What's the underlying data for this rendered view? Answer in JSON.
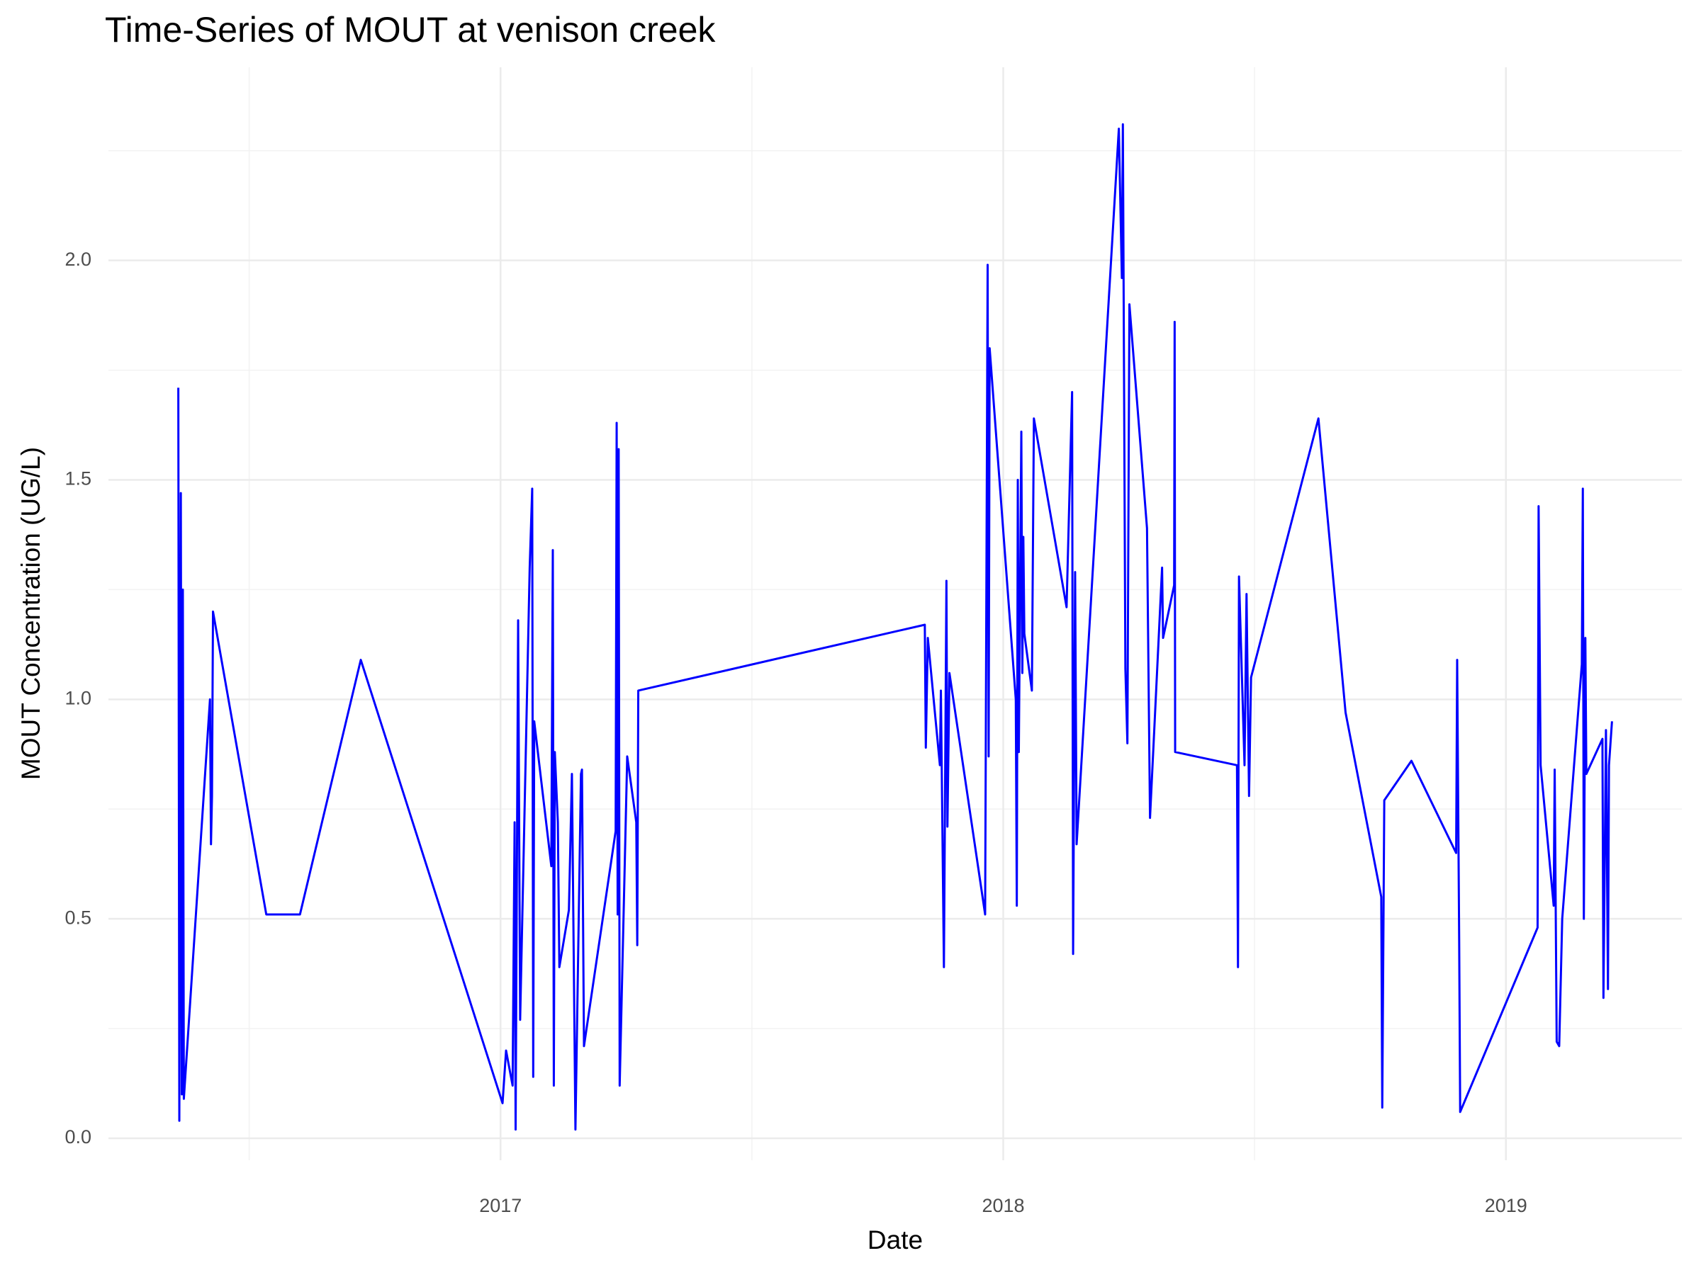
{
  "chart_data": {
    "type": "line",
    "title": "Time-Series of MOUT at venison creek",
    "x_label": "Date",
    "y_label": "MOUT Concentration (UG/L)",
    "color": "#0000ff",
    "grid": true,
    "x": [
      2016.359,
      2016.361,
      2016.364,
      2016.366,
      2016.368,
      2016.37,
      2016.422,
      2016.424,
      2016.426,
      2016.428,
      2016.534,
      2016.601,
      2016.722,
      2017.004,
      2017.011,
      2017.024,
      2017.028,
      2017.03,
      2017.035,
      2017.039,
      2017.058,
      2017.063,
      2017.065,
      2017.067,
      2017.101,
      2017.104,
      2017.106,
      2017.108,
      2017.114,
      2017.117,
      2017.136,
      2017.142,
      2017.149,
      2017.16,
      2017.162,
      2017.166,
      2017.229,
      2017.231,
      2017.233,
      2017.235,
      2017.237,
      2017.252,
      2017.27,
      2017.272,
      2017.274,
      2017.844,
      2017.846,
      2017.85,
      2017.874,
      2017.876,
      2017.882,
      2017.887,
      2017.889,
      2017.893,
      2017.964,
      2017.969,
      2017.971,
      2017.973,
      2018.025,
      2018.027,
      2018.029,
      2018.031,
      2018.036,
      2018.038,
      2018.04,
      2018.042,
      2018.057,
      2018.061,
      2018.126,
      2018.137,
      2018.139,
      2018.143,
      2018.146,
      2018.23,
      2018.236,
      2018.238,
      2018.243,
      2018.247,
      2018.251,
      2018.286,
      2018.292,
      2018.316,
      2018.318,
      2018.34,
      2018.341,
      2018.342,
      2018.465,
      2018.467,
      2018.469,
      2018.48,
      2018.484,
      2018.489,
      2018.493,
      2018.627,
      2018.681,
      2018.752,
      2018.754,
      2018.758,
      2018.812,
      2018.901,
      2018.903,
      2018.907,
      2018.909,
      2019.063,
      2019.065,
      2019.069,
      2019.095,
      2019.097,
      2019.101,
      2019.106,
      2019.112,
      2019.151,
      2019.153,
      2019.155,
      2019.158,
      2019.16,
      2019.192,
      2019.194,
      2019.199,
      2019.203,
      2019.205,
      2019.211
    ],
    "values": [
      1.71,
      0.04,
      1.47,
      0.1,
      1.25,
      0.09,
      1.0,
      0.67,
      0.78,
      1.2,
      0.51,
      0.51,
      1.09,
      0.08,
      0.2,
      0.12,
      0.72,
      0.02,
      1.18,
      0.27,
      1.3,
      1.48,
      0.14,
      0.95,
      0.62,
      1.34,
      0.12,
      0.88,
      0.72,
      0.39,
      0.52,
      0.83,
      0.02,
      0.83,
      0.84,
      0.21,
      0.7,
      1.63,
      0.51,
      1.57,
      0.12,
      0.87,
      0.72,
      0.44,
      1.02,
      1.17,
      0.89,
      1.14,
      0.85,
      1.02,
      0.39,
      1.27,
      0.71,
      1.06,
      0.51,
      1.99,
      0.87,
      1.8,
      1.0,
      0.53,
      1.5,
      0.88,
      1.61,
      1.06,
      1.37,
      1.15,
      1.02,
      1.64,
      1.21,
      1.7,
      0.42,
      1.29,
      0.67,
      2.3,
      1.96,
      2.31,
      1.07,
      0.9,
      1.9,
      1.39,
      0.73,
      1.3,
      1.14,
      1.26,
      1.86,
      0.88,
      0.85,
      0.39,
      1.28,
      0.85,
      1.24,
      0.78,
      1.05,
      1.64,
      0.97,
      0.55,
      0.07,
      0.77,
      0.86,
      0.65,
      1.09,
      0.45,
      0.06,
      0.48,
      1.44,
      0.85,
      0.53,
      0.84,
      0.22,
      0.21,
      0.5,
      1.08,
      1.48,
      0.5,
      1.14,
      0.83,
      0.91,
      0.32,
      0.93,
      0.34,
      0.85,
      0.95
    ],
    "xlim": [
      2016.22,
      2019.35
    ],
    "xticks": [
      2017,
      2018,
      2019
    ],
    "ylim": [
      -0.05,
      2.44
    ],
    "yticks": [
      {
        "value": 0,
        "label": "0.0"
      },
      {
        "value": 0.5,
        "label": "0.5"
      },
      {
        "value": 1,
        "label": "1.0"
      },
      {
        "value": 1.5,
        "label": "1.5"
      },
      {
        "value": 2,
        "label": "2.0"
      }
    ]
  }
}
